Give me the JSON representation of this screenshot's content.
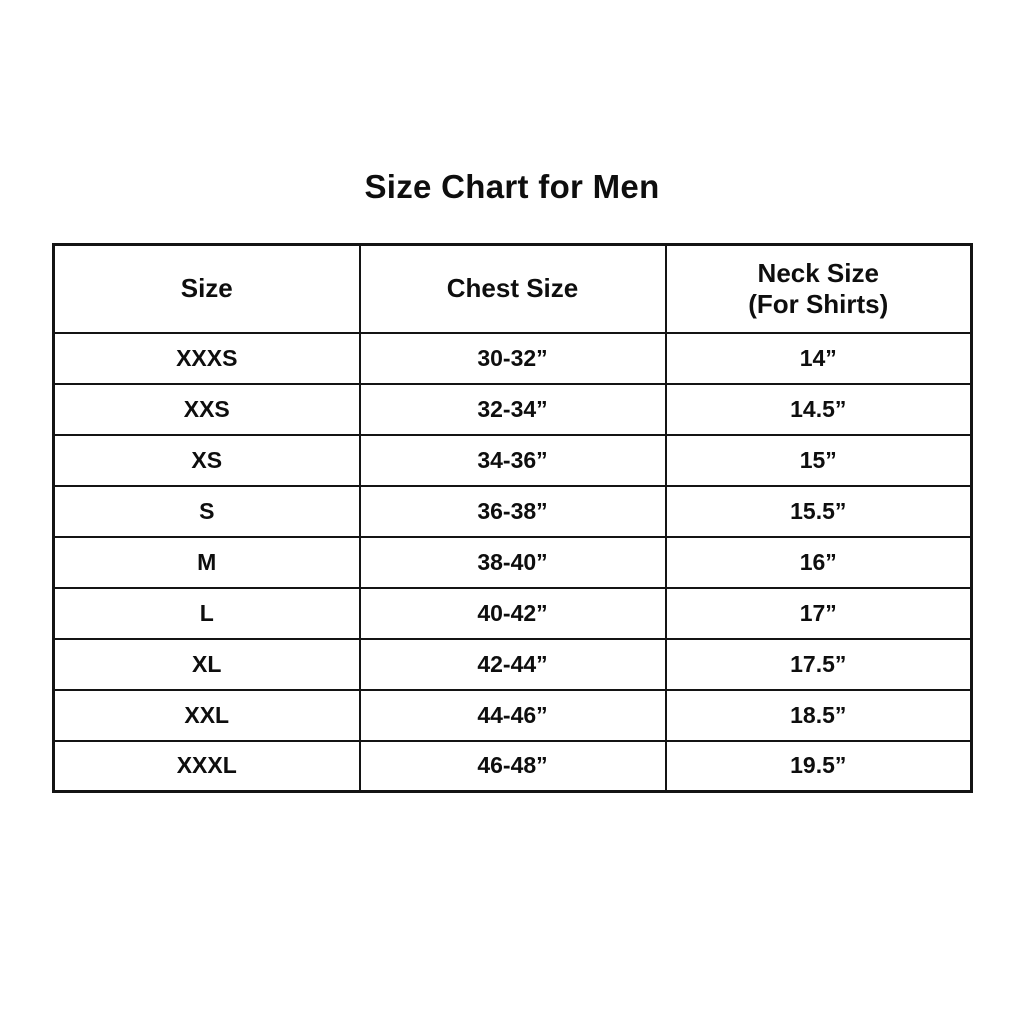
{
  "title": "Size Chart for Men",
  "table": {
    "headers": {
      "size": "Size",
      "chest": "Chest Size",
      "neck_line1": "Neck Size",
      "neck_line2": "(For Shirts)"
    },
    "rows": [
      {
        "size": "XXXS",
        "chest": "30-32”",
        "neck": "14”"
      },
      {
        "size": "XXS",
        "chest": "32-34”",
        "neck": "14.5”"
      },
      {
        "size": "XS",
        "chest": "34-36”",
        "neck": "15”"
      },
      {
        "size": "S",
        "chest": "36-38”",
        "neck": "15.5”"
      },
      {
        "size": "M",
        "chest": "38-40”",
        "neck": "16”"
      },
      {
        "size": "L",
        "chest": "40-42”",
        "neck": "17”"
      },
      {
        "size": "XL",
        "chest": "42-44”",
        "neck": "17.5”"
      },
      {
        "size": "XXL",
        "chest": "44-46”",
        "neck": "18.5”"
      },
      {
        "size": "XXXL",
        "chest": "46-48”",
        "neck": "19.5”"
      }
    ]
  },
  "colors": {
    "background": "#ffffff",
    "text": "#0e0e0e",
    "border": "#141414"
  },
  "chart_data": {
    "type": "table",
    "title": "Size Chart for Men",
    "columns": [
      "Size",
      "Chest Size",
      "Neck Size (For Shirts)"
    ],
    "rows": [
      [
        "XXXS",
        "30-32”",
        "14”"
      ],
      [
        "XXS",
        "32-34”",
        "14.5”"
      ],
      [
        "XS",
        "34-36”",
        "15”"
      ],
      [
        "S",
        "36-38”",
        "15.5”"
      ],
      [
        "M",
        "38-40”",
        "16”"
      ],
      [
        "L",
        "40-42”",
        "17”"
      ],
      [
        "XL",
        "42-44”",
        "17.5”"
      ],
      [
        "XXL",
        "44-46”",
        "18.5”"
      ],
      [
        "XXXL",
        "46-48”",
        "19.5”"
      ]
    ]
  }
}
